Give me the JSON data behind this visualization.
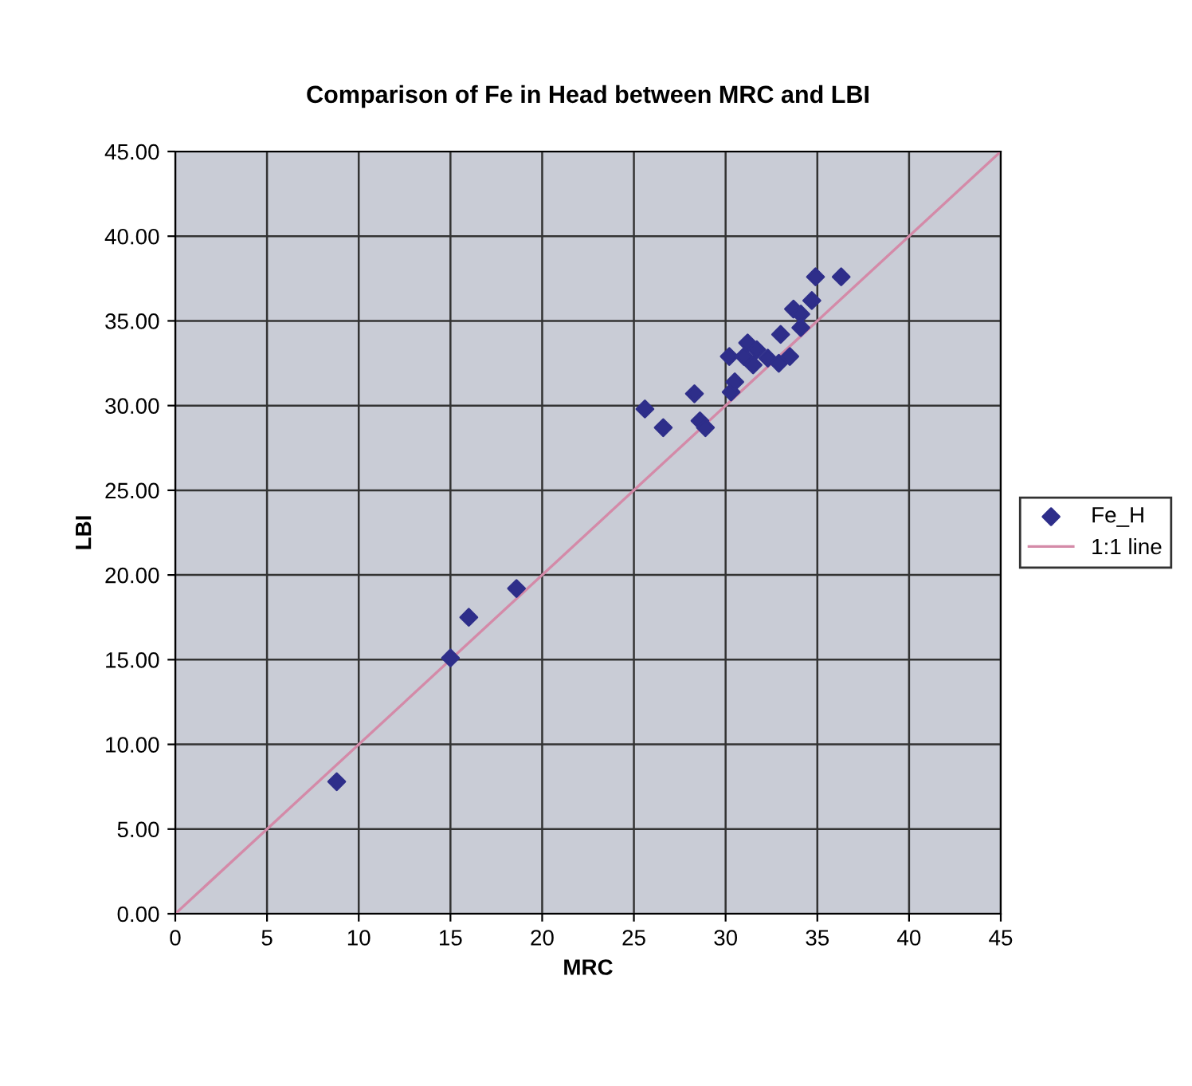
{
  "chart_data": {
    "type": "scatter",
    "title": "Comparison of Fe in Head between MRC and LBI",
    "xlabel": "MRC",
    "ylabel": "LBI",
    "xlim": [
      0,
      45
    ],
    "xticks": [
      0,
      5,
      10,
      15,
      20,
      25,
      30,
      35,
      40,
      45
    ],
    "ylim": [
      0,
      45
    ],
    "yticks": [
      {
        "value": 0,
        "label": "0.00"
      },
      {
        "value": 5,
        "label": "5.00"
      },
      {
        "value": 10,
        "label": "10.00"
      },
      {
        "value": 15,
        "label": "15.00"
      },
      {
        "value": 20,
        "label": "20.00"
      },
      {
        "value": 25,
        "label": "25.00"
      },
      {
        "value": 30,
        "label": "30.00"
      },
      {
        "value": 35,
        "label": "35.00"
      },
      {
        "value": 40,
        "label": "40.00"
      },
      {
        "value": 45,
        "label": "45.00"
      }
    ],
    "grid": true,
    "legend": "right",
    "marker": "diamond",
    "series": [
      {
        "name": "Fe_H",
        "color": "#2e2e8a",
        "x": [
          8.8,
          15.0,
          16.0,
          18.6,
          25.6,
          26.6,
          28.3,
          28.6,
          28.9,
          30.2,
          30.3,
          30.5,
          31.0,
          31.2,
          31.5,
          31.7,
          32.3,
          32.9,
          33.0,
          33.5,
          33.7,
          34.1,
          34.1,
          34.7,
          34.9,
          36.3
        ],
        "values": [
          7.8,
          15.1,
          17.5,
          19.2,
          29.8,
          28.7,
          30.7,
          29.1,
          28.7,
          32.9,
          30.8,
          31.4,
          32.9,
          33.7,
          32.4,
          33.3,
          32.8,
          32.5,
          34.2,
          32.9,
          35.7,
          35.4,
          34.6,
          36.2,
          37.6,
          37.6
        ]
      },
      {
        "name": "1:1 line",
        "type": "line",
        "marker": "none",
        "color": "#d48aa8",
        "x": [
          0,
          45
        ],
        "values": [
          0,
          45
        ]
      }
    ]
  }
}
